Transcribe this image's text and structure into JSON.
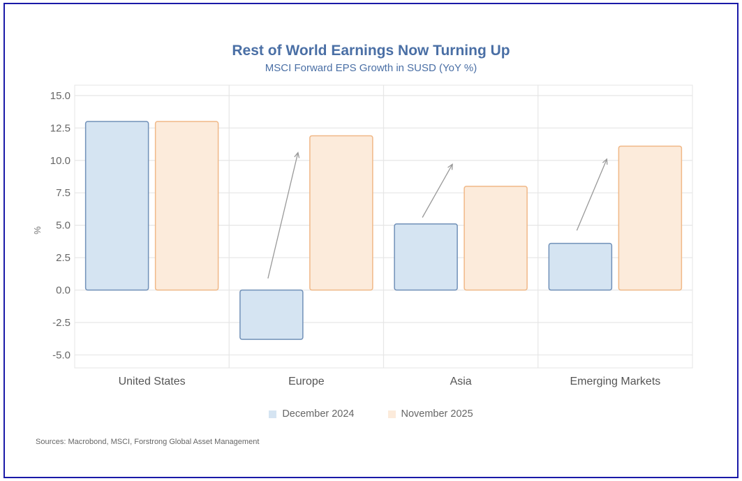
{
  "colors": {
    "frame": "#1a1aa8",
    "title": "#4a6fa5",
    "dec_fill": "#d5e4f2",
    "dec_stroke": "#7090b8",
    "nov_fill": "#fcebdb",
    "nov_stroke": "#f0b887",
    "arrow": "#999999",
    "grid": "#e6e6e6"
  },
  "source": "Sources: Macrobond, MSCI, Forstrong Global Asset Management",
  "chart_data": {
    "type": "bar",
    "title": "Rest of World Earnings Now Turning Up",
    "subtitle": "MSCI Forward EPS Growth in SUSD (YoY %)",
    "xlabel": "",
    "ylabel": "%",
    "ylim": [
      -6,
      15.8
    ],
    "yticks": [
      15.0,
      12.5,
      10.0,
      7.5,
      5.0,
      2.5,
      0.0,
      -2.5,
      -5.0
    ],
    "ytick_labels": [
      "15.0",
      "12.5",
      "10.0",
      "7.5",
      "5.0",
      "2.5",
      "0.0",
      "-2.5",
      "-5.0"
    ],
    "grid": true,
    "legend_position": "bottom",
    "categories": [
      "United States",
      "Europe",
      "Asia",
      "Emerging Markets"
    ],
    "series": [
      {
        "name": "December 2024",
        "values": [
          13.0,
          -3.8,
          5.1,
          3.6
        ]
      },
      {
        "name": "November 2025",
        "values": [
          13.0,
          11.9,
          8.0,
          11.1
        ]
      }
    ],
    "annotations": [
      {
        "type": "arrow",
        "category": "Europe",
        "from_value": 0.9,
        "to_value": 10.6
      },
      {
        "type": "arrow",
        "category": "Asia",
        "from_value": 5.6,
        "to_value": 9.7
      },
      {
        "type": "arrow",
        "category": "Emerging Markets",
        "from_value": 4.6,
        "to_value": 10.1
      }
    ]
  }
}
